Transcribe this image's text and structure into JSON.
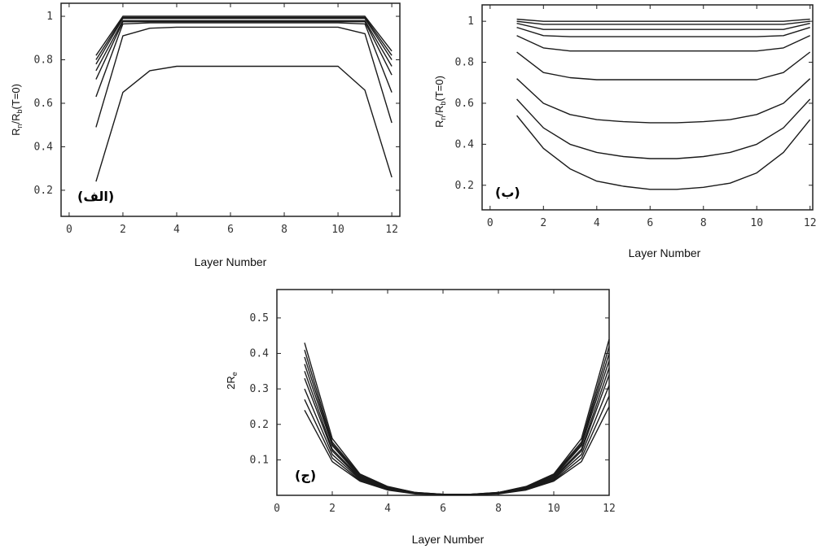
{
  "chart_data": [
    {
      "id": "a",
      "type": "line",
      "panel_label": "(الف)",
      "xlabel": "Layer Number",
      "ylabel": "R_n/R_b(T=0)",
      "xlim": [
        -0.3,
        12.3
      ],
      "ylim": [
        0.08,
        1.06
      ],
      "xticks": [
        0,
        2,
        4,
        6,
        8,
        10,
        12
      ],
      "yticks": [
        0.2,
        0.4,
        0.6,
        0.8,
        1
      ],
      "ytick_labels": [
        "0.2",
        "0.4",
        "0.6",
        "0.8",
        "1"
      ],
      "grid": false,
      "x": [
        1,
        2,
        3,
        4,
        5,
        6,
        7,
        8,
        9,
        10,
        11,
        12
      ],
      "series": [
        {
          "values": [
            0.82,
            1.0,
            1.0,
            1.0,
            1.0,
            1.0,
            1.0,
            1.0,
            1.0,
            1.0,
            1.0,
            0.84
          ]
        },
        {
          "values": [
            0.8,
            0.995,
            0.995,
            0.995,
            0.995,
            0.995,
            0.995,
            0.995,
            0.995,
            0.995,
            0.995,
            0.82
          ]
        },
        {
          "values": [
            0.78,
            0.99,
            0.99,
            0.99,
            0.99,
            0.99,
            0.99,
            0.99,
            0.99,
            0.99,
            0.99,
            0.8
          ]
        },
        {
          "values": [
            0.75,
            0.98,
            0.98,
            0.98,
            0.98,
            0.98,
            0.98,
            0.98,
            0.98,
            0.98,
            0.98,
            0.77
          ]
        },
        {
          "values": [
            0.71,
            0.975,
            0.975,
            0.975,
            0.975,
            0.975,
            0.975,
            0.975,
            0.975,
            0.975,
            0.975,
            0.73
          ]
        },
        {
          "values": [
            0.63,
            0.965,
            0.97,
            0.97,
            0.97,
            0.97,
            0.97,
            0.97,
            0.97,
            0.97,
            0.965,
            0.65
          ]
        },
        {
          "values": [
            0.49,
            0.91,
            0.945,
            0.95,
            0.95,
            0.95,
            0.95,
            0.95,
            0.95,
            0.95,
            0.92,
            0.51
          ]
        },
        {
          "values": [
            0.24,
            0.65,
            0.75,
            0.77,
            0.77,
            0.77,
            0.77,
            0.77,
            0.77,
            0.77,
            0.66,
            0.26
          ]
        }
      ]
    },
    {
      "id": "b",
      "type": "line",
      "panel_label": "(ب)",
      "xlabel": "Layer Number",
      "ylabel": "R_n/R_b(T=0)",
      "xlim": [
        -0.3,
        12.1
      ],
      "ylim": [
        0.08,
        1.08
      ],
      "xticks": [
        0,
        2,
        4,
        6,
        8,
        10,
        12
      ],
      "yticks": [
        0.2,
        0.4,
        0.6,
        0.8,
        1
      ],
      "ytick_labels": [
        "0.2",
        "0.4",
        "0.6",
        "0.8",
        "1"
      ],
      "grid": false,
      "x": [
        1,
        2,
        3,
        4,
        5,
        6,
        7,
        8,
        9,
        10,
        11,
        12
      ],
      "series": [
        {
          "values": [
            1.01,
            1.0,
            1.0,
            1.0,
            1.0,
            1.0,
            1.0,
            1.0,
            1.0,
            1.0,
            1.0,
            1.01
          ]
        },
        {
          "values": [
            1.0,
            0.985,
            0.985,
            0.985,
            0.985,
            0.985,
            0.985,
            0.985,
            0.985,
            0.985,
            0.985,
            1.0
          ]
        },
        {
          "values": [
            0.99,
            0.96,
            0.96,
            0.96,
            0.96,
            0.96,
            0.96,
            0.96,
            0.96,
            0.96,
            0.96,
            0.99
          ]
        },
        {
          "values": [
            0.97,
            0.93,
            0.925,
            0.925,
            0.925,
            0.925,
            0.925,
            0.925,
            0.925,
            0.925,
            0.93,
            0.97
          ]
        },
        {
          "values": [
            0.93,
            0.87,
            0.855,
            0.855,
            0.855,
            0.855,
            0.855,
            0.855,
            0.855,
            0.855,
            0.87,
            0.93
          ]
        },
        {
          "values": [
            0.85,
            0.75,
            0.725,
            0.715,
            0.715,
            0.715,
            0.715,
            0.715,
            0.715,
            0.715,
            0.75,
            0.85
          ]
        },
        {
          "values": [
            0.72,
            0.6,
            0.545,
            0.52,
            0.51,
            0.505,
            0.505,
            0.51,
            0.52,
            0.545,
            0.6,
            0.72
          ]
        },
        {
          "values": [
            0.62,
            0.48,
            0.4,
            0.36,
            0.34,
            0.33,
            0.33,
            0.34,
            0.36,
            0.4,
            0.48,
            0.62
          ]
        },
        {
          "values": [
            0.54,
            0.38,
            0.28,
            0.22,
            0.195,
            0.18,
            0.18,
            0.19,
            0.21,
            0.26,
            0.36,
            0.52
          ]
        }
      ]
    },
    {
      "id": "c",
      "type": "line",
      "panel_label": "(ج)",
      "xlabel": "Layer Number",
      "ylabel": "2R_e",
      "xlim": [
        0,
        12
      ],
      "ylim": [
        0,
        0.58
      ],
      "xticks": [
        0,
        2,
        4,
        6,
        8,
        10,
        12
      ],
      "yticks": [
        0.1,
        0.2,
        0.3,
        0.4,
        0.5
      ],
      "ytick_labels": [
        "0.1",
        "0.2",
        "0.3",
        "0.4",
        "0.5"
      ],
      "grid": false,
      "x": [
        1,
        2,
        3,
        4,
        5,
        6,
        7,
        8,
        9,
        10,
        11,
        12
      ],
      "series": [
        {
          "values": [
            0.43,
            0.16,
            0.06,
            0.025,
            0.008,
            0.003,
            0.003,
            0.008,
            0.025,
            0.06,
            0.16,
            0.44
          ]
        },
        {
          "values": [
            0.41,
            0.15,
            0.058,
            0.024,
            0.008,
            0.003,
            0.003,
            0.008,
            0.024,
            0.058,
            0.15,
            0.42
          ]
        },
        {
          "values": [
            0.39,
            0.145,
            0.055,
            0.022,
            0.007,
            0.003,
            0.003,
            0.007,
            0.022,
            0.055,
            0.145,
            0.4
          ]
        },
        {
          "values": [
            0.37,
            0.14,
            0.052,
            0.021,
            0.007,
            0.002,
            0.002,
            0.007,
            0.021,
            0.052,
            0.14,
            0.38
          ]
        },
        {
          "values": [
            0.35,
            0.13,
            0.05,
            0.02,
            0.006,
            0.002,
            0.002,
            0.006,
            0.02,
            0.05,
            0.13,
            0.36
          ]
        },
        {
          "values": [
            0.33,
            0.125,
            0.047,
            0.019,
            0.006,
            0.002,
            0.002,
            0.006,
            0.019,
            0.047,
            0.125,
            0.34
          ]
        },
        {
          "values": [
            0.3,
            0.115,
            0.045,
            0.018,
            0.005,
            0.002,
            0.002,
            0.005,
            0.018,
            0.045,
            0.115,
            0.31
          ]
        },
        {
          "values": [
            0.27,
            0.105,
            0.042,
            0.016,
            0.005,
            0.002,
            0.002,
            0.005,
            0.016,
            0.042,
            0.105,
            0.28
          ]
        },
        {
          "values": [
            0.24,
            0.095,
            0.04,
            0.015,
            0.004,
            0.001,
            0.001,
            0.004,
            0.015,
            0.04,
            0.095,
            0.25
          ]
        }
      ]
    }
  ]
}
